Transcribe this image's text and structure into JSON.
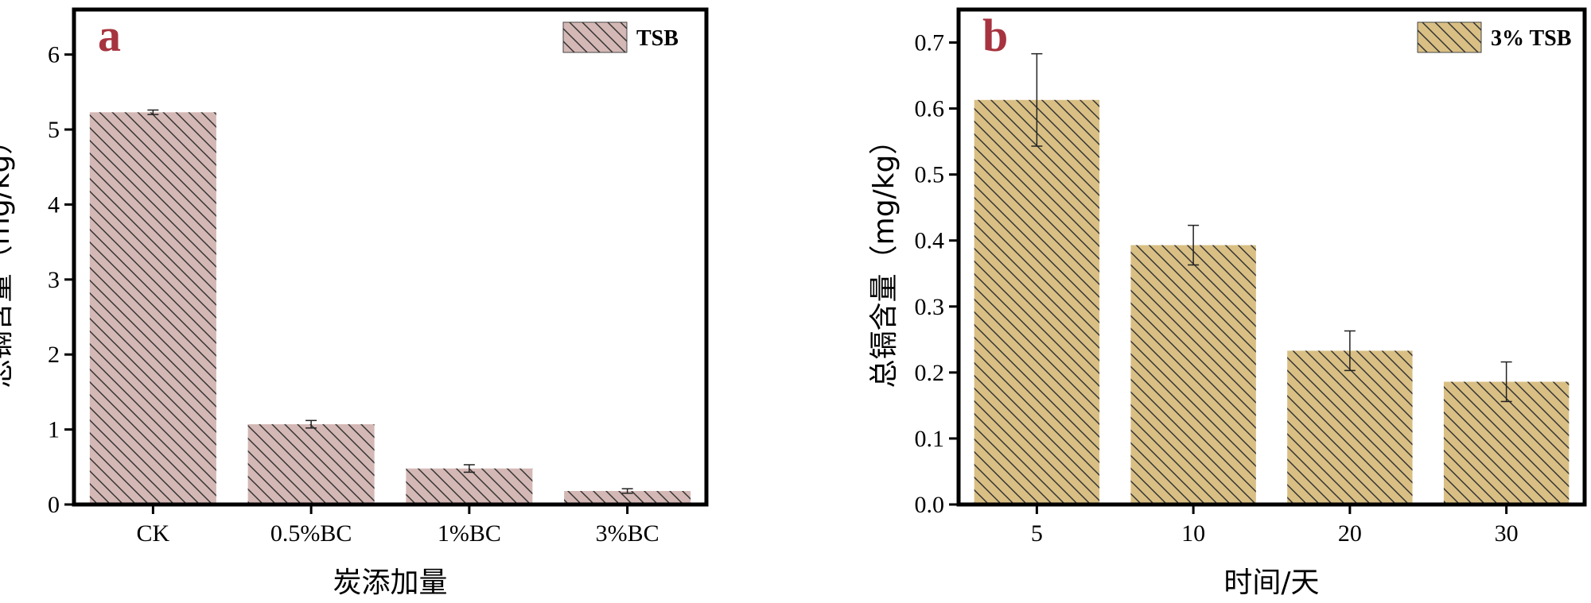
{
  "chart_data": [
    {
      "type": "bar",
      "panel_label": "a",
      "categories": [
        "CK",
        "0.5%BC",
        "1%BC",
        "3%BC"
      ],
      "series": [
        {
          "name": "TSB",
          "values": [
            5.23,
            1.07,
            0.48,
            0.18
          ],
          "errors": [
            0.03,
            0.05,
            0.05,
            0.03
          ],
          "color": "#d4b8b5"
        }
      ],
      "xlabel": "炭添加量",
      "ylabel": "总镉含量（mg/kg）",
      "ylim": [
        0,
        6.6
      ],
      "yticks": [
        0,
        1,
        2,
        3,
        4,
        5,
        6
      ],
      "grid": false,
      "legend_position": "top-right",
      "panel_label_color": "#a6333f"
    },
    {
      "type": "bar",
      "panel_label": "b",
      "categories": [
        "5",
        "10",
        "20",
        "30"
      ],
      "series": [
        {
          "name": "3% TSB",
          "values": [
            0.613,
            0.393,
            0.233,
            0.186
          ],
          "errors": [
            0.07,
            0.03,
            0.03,
            0.03
          ],
          "color": "#d9bf84"
        }
      ],
      "xlabel": "时间/天",
      "ylabel": "总镉含量（mg/kg）",
      "ylim": [
        0,
        0.75
      ],
      "yticks": [
        "0.0",
        "0.1",
        "0.2",
        "0.3",
        "0.4",
        "0.5",
        "0.6",
        "0.7"
      ],
      "grid": false,
      "legend_position": "top-right",
      "panel_label_color": "#a6333f"
    }
  ]
}
